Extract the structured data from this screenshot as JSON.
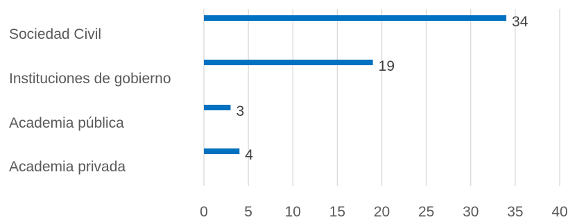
{
  "chart_data": {
    "type": "bar",
    "orientation": "horizontal",
    "categories": [
      "Sociedad Civil",
      "Instituciones de gobierno",
      "Academia pública",
      "Academia privada"
    ],
    "values": [
      34,
      19,
      3,
      4
    ],
    "data_labels": [
      "34",
      "19",
      "3",
      "4"
    ],
    "x_ticks": [
      "0",
      "5",
      "10",
      "15",
      "20",
      "25",
      "30",
      "35",
      "40"
    ],
    "xlim": [
      0,
      40
    ],
    "grid": true,
    "legend": "none",
    "colors": {
      "bar": "#0070c0",
      "grid": "#d9d9d9",
      "text": "#595959"
    }
  }
}
